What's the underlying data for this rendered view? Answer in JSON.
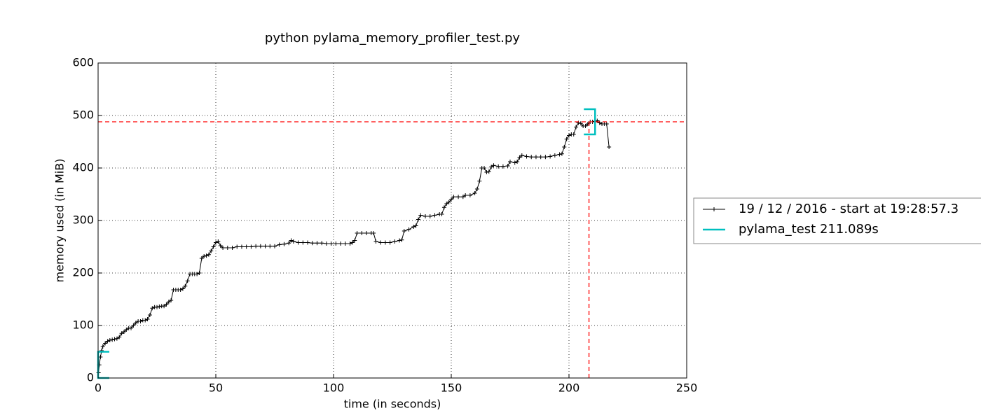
{
  "chart_data": {
    "type": "line",
    "title": "python pylama_memory_profiler_test.py",
    "xlabel": "time (in seconds)",
    "ylabel": "memory used (in MiB)",
    "xlim": [
      0,
      250
    ],
    "xticks": [
      0,
      50,
      100,
      150,
      200,
      250
    ],
    "ylim": [
      0,
      600
    ],
    "yticks": [
      0,
      100,
      200,
      300,
      400,
      500,
      600
    ],
    "grid": true,
    "legend": "right",
    "series": [
      {
        "name": "19 / 12 / 2016 - start at 19:28:57.3",
        "color": "#000000",
        "x": [
          0.2,
          0.5,
          1,
          1.5,
          2,
          3,
          4,
          5,
          6,
          7,
          8,
          9,
          10,
          11,
          12,
          13,
          14,
          15,
          16,
          17,
          18,
          19,
          20,
          21,
          22,
          23,
          24,
          25,
          26,
          27,
          28,
          29,
          30,
          31,
          32,
          33,
          34,
          35,
          36,
          37,
          38,
          39,
          40,
          41,
          42,
          43,
          44,
          45,
          46,
          47,
          48,
          49,
          50,
          51,
          52,
          53,
          55,
          57,
          59,
          61,
          63,
          65,
          67,
          69,
          71,
          73,
          75,
          77,
          79,
          81,
          82,
          83,
          85,
          87,
          89,
          91,
          93,
          95,
          97,
          99,
          101,
          103,
          105,
          107,
          108,
          109,
          110,
          112,
          114,
          116,
          117,
          118,
          120,
          122,
          124,
          126,
          128,
          129,
          130,
          132,
          134,
          135,
          136,
          137,
          139,
          141,
          143,
          145,
          146,
          147,
          148,
          149,
          150,
          151,
          153,
          155,
          156,
          158,
          160,
          161,
          162,
          163,
          164,
          165,
          166,
          167,
          168,
          170,
          172,
          174,
          175,
          177,
          178,
          179,
          180,
          182,
          184,
          186,
          188,
          190,
          192,
          194,
          196,
          197,
          198,
          199,
          200,
          201,
          202,
          203,
          204,
          205,
          206,
          207,
          208,
          209,
          210,
          211,
          212,
          213,
          214,
          215,
          216,
          217
        ],
        "values": [
          10,
          25,
          40,
          52,
          60,
          66,
          70,
          72,
          73,
          74,
          75,
          78,
          85,
          88,
          92,
          95,
          95,
          100,
          105,
          108,
          108,
          110,
          110,
          112,
          120,
          133,
          135,
          135,
          136,
          137,
          137,
          140,
          145,
          148,
          168,
          168,
          168,
          168,
          170,
          175,
          185,
          198,
          198,
          198,
          198,
          200,
          228,
          232,
          233,
          235,
          242,
          250,
          258,
          260,
          252,
          248,
          248,
          248,
          250,
          250,
          250,
          250,
          251,
          251,
          251,
          251,
          251,
          254,
          255,
          257,
          262,
          260,
          258,
          258,
          258,
          257,
          257,
          257,
          256,
          256,
          256,
          256,
          256,
          256,
          258,
          262,
          276,
          276,
          276,
          276,
          276,
          260,
          258,
          258,
          258,
          260,
          262,
          263,
          280,
          283,
          288,
          290,
          302,
          310,
          308,
          308,
          310,
          312,
          312,
          325,
          332,
          335,
          340,
          345,
          345,
          345,
          348,
          348,
          352,
          360,
          375,
          400,
          400,
          392,
          393,
          402,
          405,
          403,
          403,
          404,
          412,
          410,
          412,
          420,
          424,
          422,
          421,
          421,
          421,
          421,
          422,
          424,
          426,
          427,
          440,
          455,
          462,
          464,
          464,
          478,
          486,
          485,
          480,
          480,
          484,
          488,
          488,
          489,
          490,
          486,
          484,
          484,
          484,
          440
        ]
      },
      {
        "name": "pylama_test 211.089s",
        "color": "#00bfbf",
        "brackets": [
          {
            "x": 0,
            "low": 0,
            "high": 50
          },
          {
            "x": 211.089,
            "low": 464,
            "high": 512
          }
        ]
      }
    ],
    "peak": {
      "x": 208.5,
      "y": 488,
      "color": "#ff0000"
    }
  }
}
